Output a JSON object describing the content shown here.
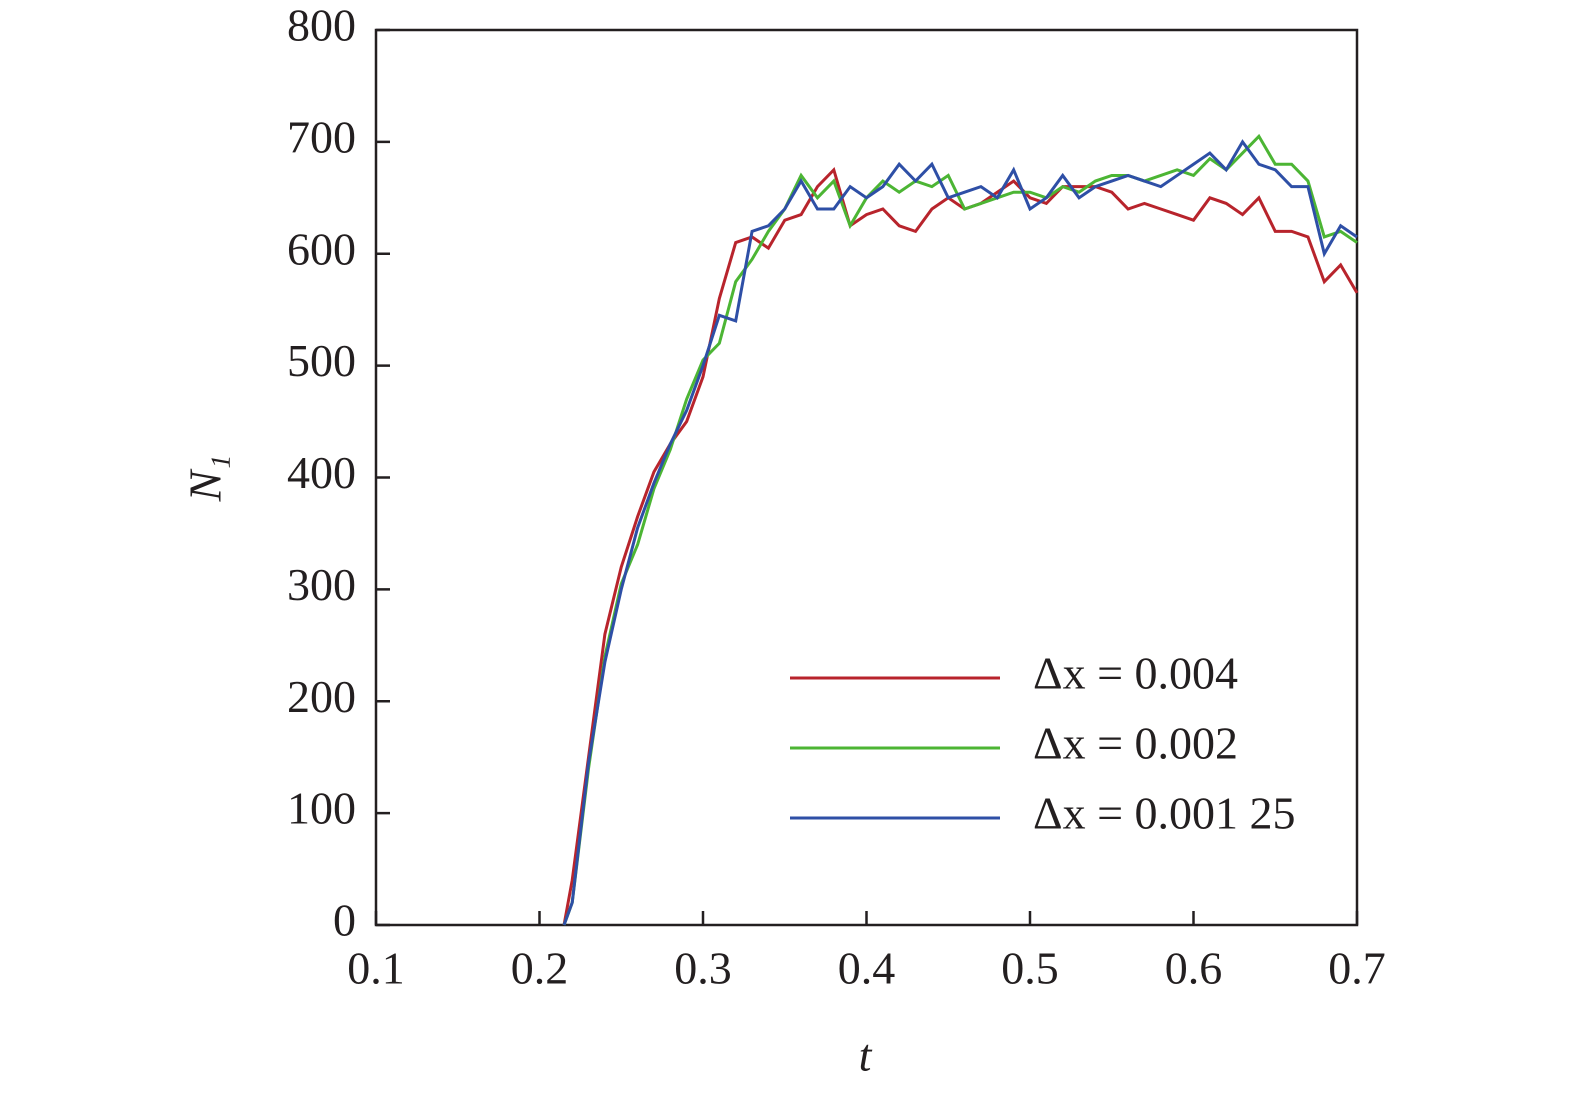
{
  "chart_data": {
    "type": "line",
    "xlabel": "t",
    "ylabel": "N₁",
    "x": [
      0.215,
      0.22,
      0.23,
      0.24,
      0.25,
      0.26,
      0.27,
      0.28,
      0.29,
      0.3,
      0.31,
      0.32,
      0.33,
      0.34,
      0.35,
      0.36,
      0.37,
      0.38,
      0.39,
      0.4,
      0.41,
      0.42,
      0.43,
      0.44,
      0.45,
      0.46,
      0.47,
      0.48,
      0.49,
      0.5,
      0.51,
      0.52,
      0.53,
      0.54,
      0.55,
      0.56,
      0.57,
      0.58,
      0.59,
      0.6,
      0.61,
      0.62,
      0.63,
      0.64,
      0.65,
      0.66,
      0.67,
      0.68,
      0.69,
      0.7
    ],
    "series": [
      {
        "name": "Δx = 0.004",
        "color": "#b8242c",
        "values": [
          0,
          40,
          150,
          260,
          320,
          365,
          405,
          430,
          450,
          490,
          560,
          610,
          615,
          605,
          630,
          635,
          660,
          675,
          625,
          635,
          640,
          625,
          620,
          640,
          650,
          640,
          645,
          655,
          665,
          650,
          645,
          660,
          660,
          660,
          655,
          640,
          645,
          640,
          635,
          630,
          650,
          645,
          635,
          650,
          620,
          620,
          615,
          575,
          590,
          565
        ]
      },
      {
        "name": "Δx = 0.002",
        "color": "#4cb534",
        "values": [
          0,
          20,
          140,
          240,
          305,
          340,
          390,
          425,
          470,
          505,
          520,
          575,
          595,
          620,
          640,
          670,
          650,
          665,
          625,
          650,
          665,
          655,
          665,
          660,
          670,
          640,
          645,
          650,
          655,
          655,
          650,
          660,
          655,
          665,
          670,
          670,
          665,
          670,
          675,
          670,
          685,
          675,
          690,
          705,
          680,
          680,
          665,
          615,
          620,
          610
        ]
      },
      {
        "name": "Δx = 0.001 25",
        "color": "#2e4fa6",
        "values": [
          0,
          20,
          145,
          235,
          300,
          355,
          395,
          430,
          460,
          500,
          545,
          540,
          620,
          625,
          640,
          665,
          640,
          640,
          660,
          650,
          660,
          680,
          665,
          680,
          650,
          655,
          660,
          650,
          675,
          640,
          650,
          670,
          650,
          660,
          665,
          670,
          665,
          660,
          670,
          680,
          690,
          675,
          700,
          680,
          675,
          660,
          660,
          600,
          625,
          615
        ]
      }
    ],
    "xlim": [
      0.1,
      0.7
    ],
    "xticks": [
      0.1,
      0.2,
      0.3,
      0.4,
      0.5,
      0.6,
      0.7
    ],
    "ylim": [
      0,
      800
    ],
    "yticks": [
      0,
      100,
      200,
      300,
      400,
      500,
      600,
      700,
      800
    ],
    "legend": "lower right"
  }
}
